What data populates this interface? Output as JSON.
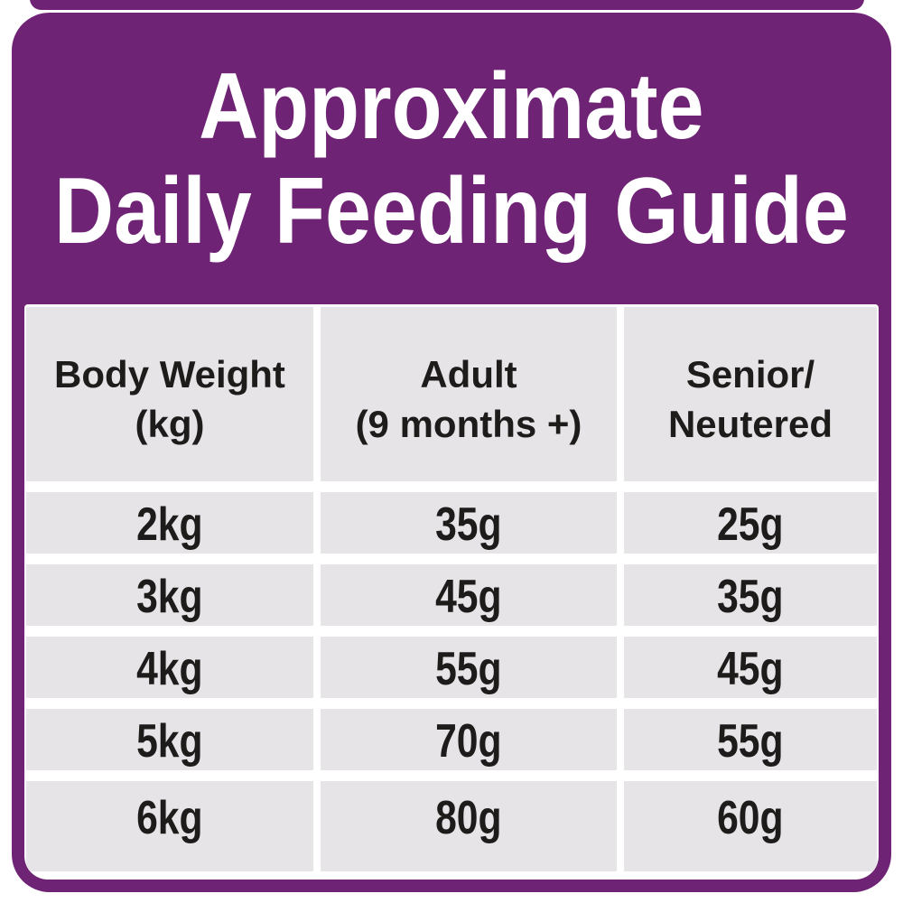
{
  "title": {
    "line1": "Approximate",
    "line2": "Daily Feeding Guide"
  },
  "colors": {
    "purple": "#6f2375",
    "cell-gray": "#e6e4e7",
    "text-dark": "#1d1c1b",
    "title-white": "#ffffff"
  },
  "table": {
    "headers": [
      {
        "line1": "Body Weight",
        "line2": "(kg)"
      },
      {
        "line1": "Adult",
        "line2": "(9 months +)"
      },
      {
        "line1": "Senior/",
        "line2": "Neutered"
      }
    ],
    "rows": [
      {
        "weight": "2kg",
        "adult": "35g",
        "senior": "25g"
      },
      {
        "weight": "3kg",
        "adult": "45g",
        "senior": "35g"
      },
      {
        "weight": "4kg",
        "adult": "55g",
        "senior": "45g"
      },
      {
        "weight": "5kg",
        "adult": "70g",
        "senior": "55g"
      },
      {
        "weight": "6kg",
        "adult": "80g",
        "senior": "60g"
      }
    ]
  },
  "chart_data": {
    "type": "table",
    "title": "Approximate Daily Feeding Guide",
    "columns": [
      "Body Weight (kg)",
      "Adult (9 months +)",
      "Senior/Neutered"
    ],
    "rows": [
      [
        "2kg",
        "35g",
        "25g"
      ],
      [
        "3kg",
        "45g",
        "35g"
      ],
      [
        "4kg",
        "55g",
        "45g"
      ],
      [
        "5kg",
        "70g",
        "55g"
      ],
      [
        "6kg",
        "80g",
        "60g"
      ]
    ]
  }
}
